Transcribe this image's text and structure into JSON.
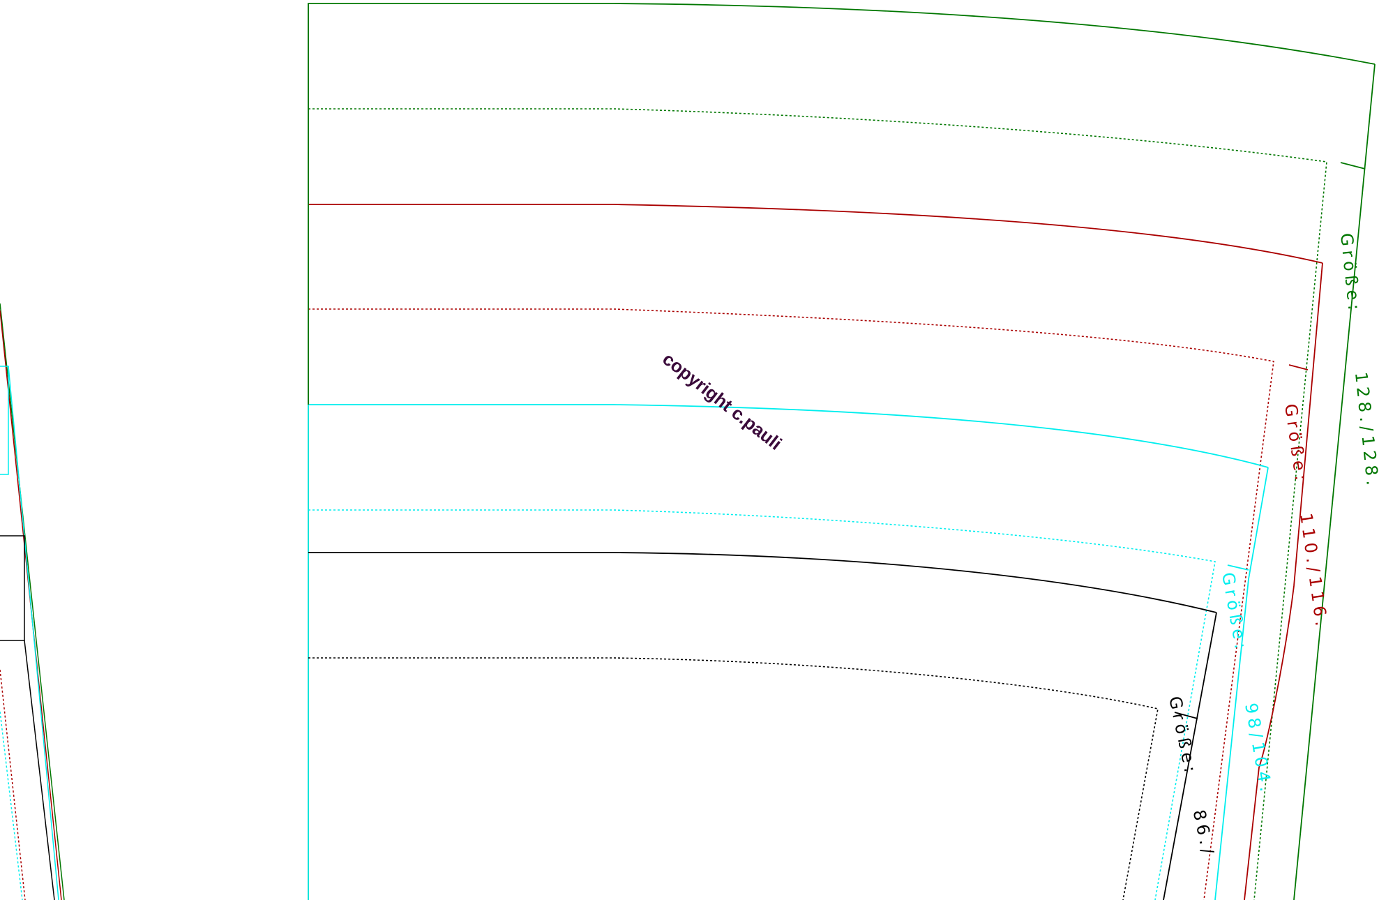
{
  "watermark": "copyright c.pauli",
  "size_labels": {
    "green": {
      "prefix": "Größe:",
      "value": "128./128."
    },
    "red": {
      "prefix": "Größe:",
      "value": "110./116."
    },
    "cyan": {
      "prefix": "Größe:",
      "value": "98/104."
    },
    "black": {
      "prefix": "Größe:",
      "value": "86./"
    }
  },
  "colors": {
    "green": "#007700",
    "red": "#aa0000",
    "cyan": "#00eeee",
    "black": "#000000",
    "watermark": "#3a0a3a"
  }
}
